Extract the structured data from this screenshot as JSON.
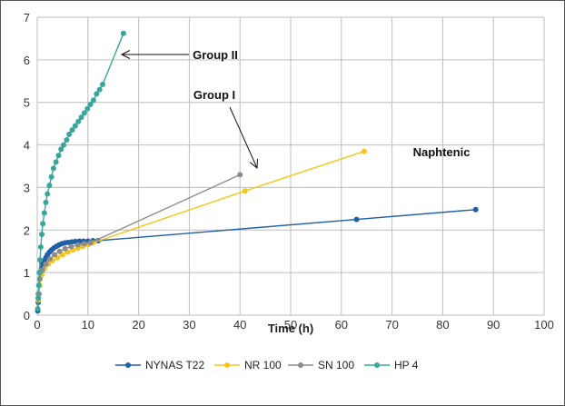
{
  "chart_data": {
    "type": "line",
    "title": "",
    "xlabel": "Time (h)",
    "ylabel": "",
    "xlim": [
      0,
      100
    ],
    "ylim": [
      0,
      7
    ],
    "x_ticks": [
      0,
      10,
      20,
      30,
      40,
      50,
      60,
      70,
      80,
      90,
      100
    ],
    "y_ticks": [
      0,
      1,
      2,
      3,
      4,
      5,
      6,
      7
    ],
    "grid": true,
    "legend_position": "bottom",
    "series": [
      {
        "name": "NYNAS T22",
        "color": "#1f5fa6",
        "points": [
          [
            0.1,
            0.1
          ],
          [
            0.2,
            0.3
          ],
          [
            0.3,
            0.5
          ],
          [
            0.4,
            0.7
          ],
          [
            0.5,
            0.85
          ],
          [
            0.7,
            1.0
          ],
          [
            0.9,
            1.1
          ],
          [
            1.1,
            1.2
          ],
          [
            1.4,
            1.28
          ],
          [
            1.7,
            1.35
          ],
          [
            2.0,
            1.42
          ],
          [
            2.4,
            1.48
          ],
          [
            2.8,
            1.53
          ],
          [
            3.3,
            1.58
          ],
          [
            3.8,
            1.62
          ],
          [
            4.3,
            1.65
          ],
          [
            4.9,
            1.68
          ],
          [
            5.5,
            1.7
          ],
          [
            6.1,
            1.71
          ],
          [
            6.8,
            1.72
          ],
          [
            7.5,
            1.73
          ],
          [
            8.3,
            1.74
          ],
          [
            9.1,
            1.74
          ],
          [
            10.0,
            1.74
          ],
          [
            11.0,
            1.75
          ],
          [
            12.0,
            1.75
          ],
          [
            63.0,
            2.25
          ],
          [
            86.5,
            2.48
          ]
        ]
      },
      {
        "name": "NR 100",
        "color": "#f5c518",
        "points": [
          [
            0.2,
            0.35
          ],
          [
            0.5,
            0.7
          ],
          [
            0.9,
            0.95
          ],
          [
            1.5,
            1.1
          ],
          [
            2.2,
            1.2
          ],
          [
            3.0,
            1.28
          ],
          [
            4.0,
            1.35
          ],
          [
            5.0,
            1.42
          ],
          [
            6.0,
            1.48
          ],
          [
            7.0,
            1.53
          ],
          [
            8.0,
            1.57
          ],
          [
            9.0,
            1.61
          ],
          [
            10.0,
            1.65
          ],
          [
            11.0,
            1.7
          ],
          [
            41.0,
            2.92
          ],
          [
            64.5,
            3.85
          ]
        ]
      },
      {
        "name": "SN 100",
        "color": "#8c8c8c",
        "points": [
          [
            0.2,
            0.5
          ],
          [
            0.5,
            0.85
          ],
          [
            1.0,
            1.05
          ],
          [
            1.7,
            1.2
          ],
          [
            2.5,
            1.32
          ],
          [
            3.4,
            1.42
          ],
          [
            4.4,
            1.5
          ],
          [
            5.5,
            1.56
          ],
          [
            6.7,
            1.61
          ],
          [
            8.0,
            1.65
          ],
          [
            9.3,
            1.68
          ],
          [
            10.5,
            1.7
          ],
          [
            40.0,
            3.3
          ]
        ]
      },
      {
        "name": "HP 4",
        "color": "#3aa59a",
        "points": [
          [
            0.1,
            0.15
          ],
          [
            0.2,
            0.4
          ],
          [
            0.3,
            0.7
          ],
          [
            0.4,
            1.0
          ],
          [
            0.55,
            1.3
          ],
          [
            0.7,
            1.6
          ],
          [
            0.9,
            1.9
          ],
          [
            1.1,
            2.15
          ],
          [
            1.4,
            2.4
          ],
          [
            1.7,
            2.65
          ],
          [
            2.0,
            2.85
          ],
          [
            2.4,
            3.05
          ],
          [
            2.8,
            3.25
          ],
          [
            3.2,
            3.45
          ],
          [
            3.7,
            3.6
          ],
          [
            4.2,
            3.75
          ],
          [
            4.7,
            3.9
          ],
          [
            5.2,
            4.0
          ],
          [
            5.8,
            4.12
          ],
          [
            6.3,
            4.25
          ],
          [
            6.9,
            4.35
          ],
          [
            7.5,
            4.45
          ],
          [
            8.1,
            4.55
          ],
          [
            8.7,
            4.65
          ],
          [
            9.3,
            4.75
          ],
          [
            9.9,
            4.85
          ],
          [
            10.5,
            4.95
          ],
          [
            11.1,
            5.05
          ],
          [
            11.7,
            5.2
          ],
          [
            12.3,
            5.3
          ],
          [
            12.9,
            5.42
          ],
          [
            17.0,
            6.62
          ]
        ]
      }
    ],
    "annotations": [
      {
        "text": "Group II",
        "arrow": true
      },
      {
        "text": "Group I",
        "arrow": true
      },
      {
        "text": "Naphtenic",
        "arrow": false
      }
    ]
  }
}
